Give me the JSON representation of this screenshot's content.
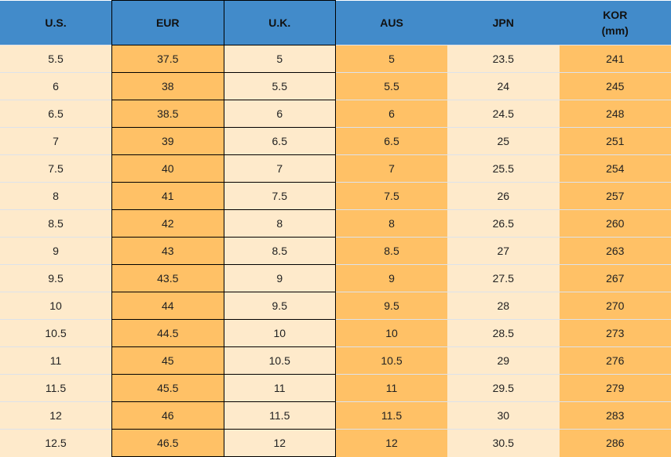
{
  "colors": {
    "header": "#428bca",
    "light": "#feeacb",
    "dark": "#ffc166"
  },
  "headers": [
    {
      "label": "U.S.",
      "sub": ""
    },
    {
      "label": "EUR",
      "sub": ""
    },
    {
      "label": "U.K.",
      "sub": ""
    },
    {
      "label": "AUS",
      "sub": ""
    },
    {
      "label": "JPN",
      "sub": ""
    },
    {
      "label": "KOR",
      "sub": "(mm)"
    }
  ],
  "rows": [
    [
      "5.5",
      "37.5",
      "5",
      "5",
      "23.5",
      "241"
    ],
    [
      "6",
      "38",
      "5.5",
      "5.5",
      "24",
      "245"
    ],
    [
      "6.5",
      "38.5",
      "6",
      "6",
      "24.5",
      "248"
    ],
    [
      "7",
      "39",
      "6.5",
      "6.5",
      "25",
      "251"
    ],
    [
      "7.5",
      "40",
      "7",
      "7",
      "25.5",
      "254"
    ],
    [
      "8",
      "41",
      "7.5",
      "7.5",
      "26",
      "257"
    ],
    [
      "8.5",
      "42",
      "8",
      "8",
      "26.5",
      "260"
    ],
    [
      "9",
      "43",
      "8.5",
      "8.5",
      "27",
      "263"
    ],
    [
      "9.5",
      "43.5",
      "9",
      "9",
      "27.5",
      "267"
    ],
    [
      "10",
      "44",
      "9.5",
      "9.5",
      "28",
      "270"
    ],
    [
      "10.5",
      "44.5",
      "10",
      "10",
      "28.5",
      "273"
    ],
    [
      "11",
      "45",
      "10.5",
      "10.5",
      "29",
      "276"
    ],
    [
      "11.5",
      "45.5",
      "11",
      "11",
      "29.5",
      "279"
    ],
    [
      "12",
      "46",
      "11.5",
      "11.5",
      "30",
      "283"
    ],
    [
      "12.5",
      "46.5",
      "12",
      "12",
      "30.5",
      "286"
    ]
  ]
}
